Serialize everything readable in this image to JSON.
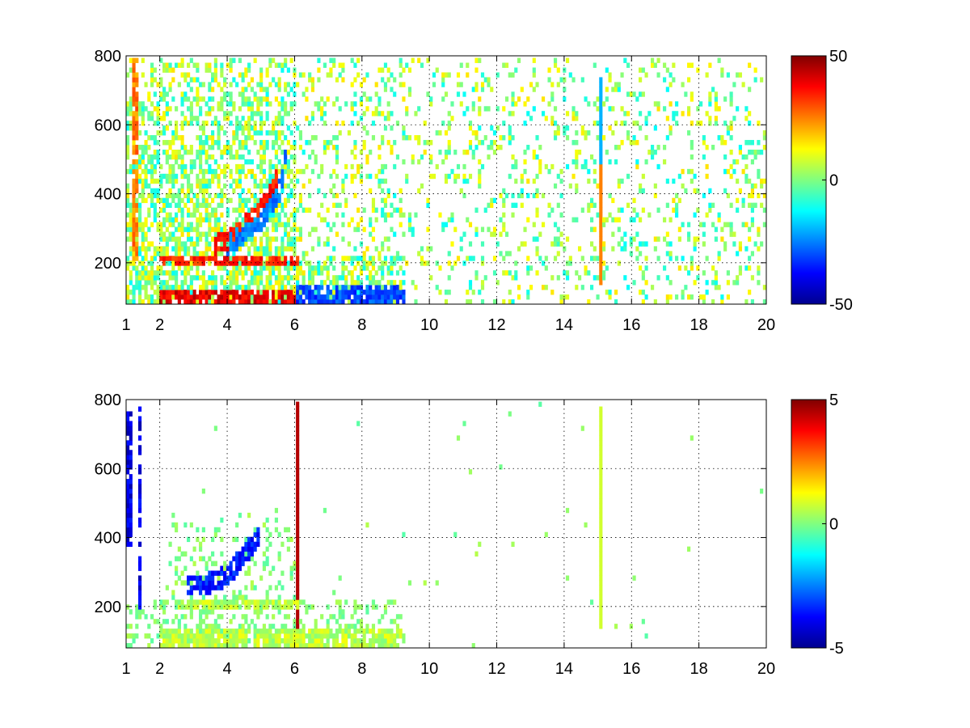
{
  "chart_data": [
    {
      "type": "heatmap",
      "title": "",
      "xlabel": "",
      "ylabel": "",
      "xlim": [
        1,
        20
      ],
      "ylim": [
        80,
        800
      ],
      "xticks": [
        1,
        2,
        4,
        6,
        8,
        10,
        12,
        14,
        16,
        18,
        20
      ],
      "yticks": [
        200,
        400,
        600,
        800
      ],
      "grid": true,
      "colormap": "jet",
      "colorbar": {
        "range": [
          -50,
          50
        ],
        "ticks": [
          -50,
          0,
          50
        ],
        "placement": "right"
      },
      "patterns": [
        {
          "kind": "band",
          "x": [
            1.2,
            1.25
          ],
          "y": [
            200,
            800
          ],
          "value": 25
        },
        {
          "kind": "band",
          "x": [
            2.0,
            6.0
          ],
          "y": [
            190,
            215
          ],
          "value": 35
        },
        {
          "kind": "band",
          "x": [
            2.0,
            6.0
          ],
          "y": [
            80,
            120
          ],
          "value": 40
        },
        {
          "kind": "band",
          "x": [
            6.0,
            9.2
          ],
          "y": [
            80,
            140
          ],
          "value": -30
        },
        {
          "kind": "curve",
          "x": [
            3.6,
            4.2,
            4.8,
            5.2,
            5.5
          ],
          "y": [
            250,
            280,
            330,
            380,
            450
          ],
          "value": 35
        },
        {
          "kind": "curve",
          "x": [
            4.0,
            4.6,
            5.1,
            5.6,
            5.8
          ],
          "y": [
            250,
            290,
            330,
            420,
            550
          ],
          "value": -25
        },
        {
          "kind": "column",
          "x": 15.1,
          "y": [
            140,
            480
          ],
          "value": 25
        },
        {
          "kind": "column",
          "x": 15.1,
          "y": [
            480,
            740
          ],
          "value": -20
        }
      ]
    },
    {
      "type": "heatmap",
      "title": "",
      "xlabel": "",
      "ylabel": "",
      "xlim": [
        1,
        20
      ],
      "ylim": [
        80,
        800
      ],
      "xticks": [
        1,
        2,
        4,
        6,
        8,
        10,
        12,
        14,
        16,
        18,
        20
      ],
      "yticks": [
        200,
        400,
        600,
        800
      ],
      "grid": true,
      "colormap": "jet",
      "colorbar": {
        "range": [
          -5,
          5
        ],
        "ticks": [
          -5,
          0,
          5
        ],
        "placement": "right"
      },
      "patterns": [
        {
          "kind": "band",
          "x": [
            1.0,
            1.05
          ],
          "y": [
            380,
            760
          ],
          "value": -4
        },
        {
          "kind": "band",
          "x": [
            1.35,
            1.4
          ],
          "y": [
            190,
            780
          ],
          "value": -4
        },
        {
          "kind": "column",
          "x": 6.1,
          "y": [
            80,
            800
          ],
          "value": 4.5
        },
        {
          "kind": "band",
          "x": [
            2.5,
            6.0
          ],
          "y": [
            190,
            215
          ],
          "value": 0.5
        },
        {
          "kind": "band",
          "x": [
            2.0,
            9.2
          ],
          "y": [
            80,
            140
          ],
          "value": 0.6
        },
        {
          "kind": "curve",
          "x": [
            2.8,
            3.4,
            4.0,
            4.6,
            5.0
          ],
          "y": [
            260,
            265,
            290,
            360,
            410
          ],
          "value": -3.5
        },
        {
          "kind": "column",
          "x": 15.1,
          "y": [
            140,
            780
          ],
          "value": 0.8
        }
      ]
    }
  ]
}
